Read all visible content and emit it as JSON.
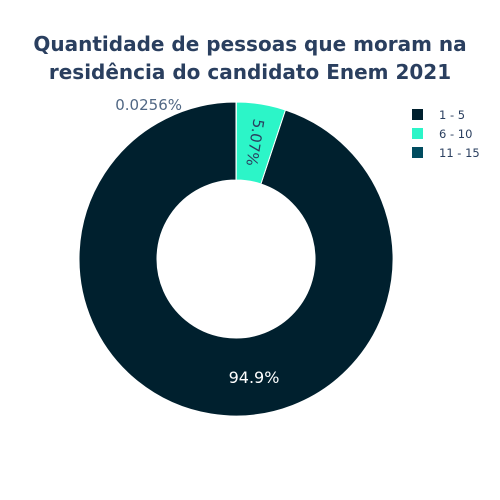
{
  "chart_data": {
    "type": "pie",
    "hole": true,
    "title_lines": [
      "Quantidade de pessoas que moram na",
      "residência do candidato Enem 2021"
    ],
    "categories": [
      "1 - 5",
      "6 - 10",
      "11 - 15"
    ],
    "values": [
      94.9,
      5.07,
      0.0256
    ],
    "labels": [
      "94.9%",
      "5.07%",
      "0.0256%"
    ],
    "colors": [
      "#00202e",
      "#2cf5c8",
      "#004c5f"
    ],
    "label_colors": [
      "#ffffff",
      "#2a3f5f",
      "#2a3f5f"
    ],
    "legend_position": "top-right"
  }
}
